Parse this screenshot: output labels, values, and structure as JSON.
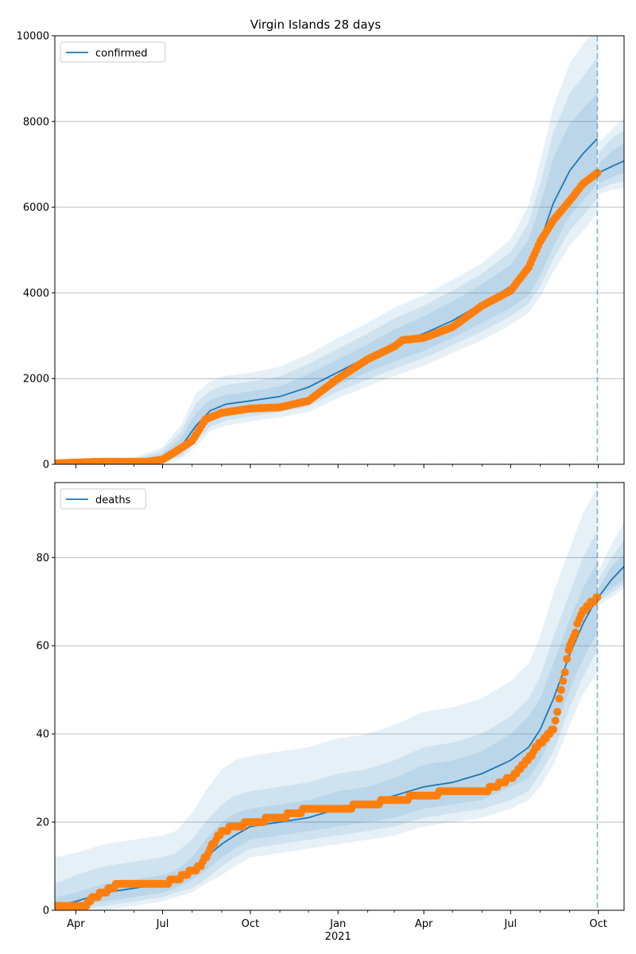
{
  "title": "Virgin Islands 28 days",
  "colors": {
    "model": "#1f77b4",
    "observed": "#ff7f0e",
    "band": "#1f77b4",
    "grid": "#b0b0b0",
    "vline": "#1f77b4"
  },
  "x_ticks": [
    {
      "date": "2020-04-01",
      "label": "Apr"
    },
    {
      "date": "2020-07-01",
      "label": "Jul"
    },
    {
      "date": "2020-10-01",
      "label": "Oct"
    },
    {
      "date": "2021-01-01",
      "label": "Jan",
      "sublabel": "2021"
    },
    {
      "date": "2021-04-01",
      "label": "Apr"
    },
    {
      "date": "2021-07-01",
      "label": "Jul"
    },
    {
      "date": "2021-10-01",
      "label": "Oct"
    }
  ],
  "chart_data": [
    {
      "type": "line",
      "name": "confirmed",
      "legend": "confirmed",
      "legend_position": "top-left",
      "grid": "y",
      "xlim": [
        "2020-03-10",
        "2021-10-28"
      ],
      "ylim": [
        0,
        10000
      ],
      "y_ticks": [
        0,
        2000,
        4000,
        6000,
        8000,
        10000
      ],
      "forecast_start": "2021-09-30",
      "model": {
        "x": [
          "2020-03-10",
          "2020-04-15",
          "2020-06-01",
          "2020-06-30",
          "2020-07-20",
          "2020-08-05",
          "2020-08-20",
          "2020-09-05",
          "2020-10-01",
          "2020-11-01",
          "2020-12-01",
          "2021-01-01",
          "2021-02-01",
          "2021-03-01",
          "2021-04-01",
          "2021-05-01",
          "2021-06-01",
          "2021-07-01",
          "2021-07-20",
          "2021-08-01",
          "2021-08-15",
          "2021-09-01",
          "2021-09-15",
          "2021-09-30",
          "2021-10-01",
          "2021-10-15",
          "2021-10-28"
        ],
        "y": [
          10,
          30,
          60,
          130,
          400,
          900,
          1250,
          1400,
          1480,
          1580,
          1800,
          2150,
          2500,
          2800,
          3050,
          3350,
          3750,
          4150,
          4600,
          5200,
          6100,
          6850,
          7250,
          7600,
          6800,
          6950,
          7080
        ],
        "bands": [
          {
            "lo": [
              0,
              15,
              40,
              80,
              250,
              650,
              1000,
              1150,
              1250,
              1350,
              1500,
              1850,
              2150,
              2400,
              2650,
              2950,
              3300,
              3650,
              3950,
              4400,
              5100,
              5800,
              6150,
              6550,
              6550,
              6700,
              6800
            ],
            "hi": [
              20,
              50,
              90,
              220,
              600,
              1200,
              1500,
              1620,
              1700,
              1820,
              2100,
              2450,
              2800,
              3150,
              3450,
              3800,
              4200,
              4650,
              5250,
              6050,
              7150,
              7950,
              8300,
              8650,
              7000,
              7300,
              7500
            ]
          },
          {
            "lo": [
              0,
              5,
              25,
              50,
              180,
              520,
              880,
              1020,
              1120,
              1220,
              1350,
              1700,
              1980,
              2230,
              2480,
              2780,
              3100,
              3450,
              3750,
              4150,
              4800,
              5450,
              5800,
              6200,
              6400,
              6550,
              6600
            ],
            "hi": [
              40,
              70,
              120,
              300,
              750,
              1420,
              1720,
              1850,
              1930,
              2050,
              2340,
              2700,
              3050,
              3400,
              3700,
              4050,
              4450,
              4950,
              5650,
              6550,
              7750,
              8650,
              9050,
              9500,
              7250,
              7600,
              7800
            ]
          },
          {
            "lo": [
              0,
              0,
              10,
              30,
              120,
              420,
              780,
              900,
              1000,
              1100,
              1220,
              1550,
              1820,
              2060,
              2300,
              2600,
              2900,
              3250,
              3550,
              3900,
              4500,
              5100,
              5450,
              5850,
              6300,
              6400,
              6450
            ],
            "hi": [
              60,
              100,
              160,
              380,
              900,
              1650,
              1940,
              2060,
              2140,
              2270,
              2570,
              2950,
              3300,
              3650,
              3950,
              4300,
              4700,
              5250,
              6050,
              7050,
              8350,
              9350,
              9800,
              10200,
              7500,
              7800,
              8100
            ]
          }
        ]
      },
      "observed": {
        "x": [
          "2020-03-10",
          "2020-04-01",
          "2020-04-20",
          "2020-05-15",
          "2020-06-15",
          "2020-07-01",
          "2020-07-15",
          "2020-08-01",
          "2020-08-15",
          "2020-09-01",
          "2020-10-01",
          "2020-11-01",
          "2020-12-01",
          "2021-01-01",
          "2021-02-01",
          "2021-03-01",
          "2021-03-10",
          "2021-04-01",
          "2021-05-01",
          "2021-06-01",
          "2021-07-01",
          "2021-07-20",
          "2021-08-01",
          "2021-08-15",
          "2021-09-01",
          "2021-09-15",
          "2021-09-30"
        ],
        "y": [
          20,
          40,
          55,
          60,
          60,
          110,
          300,
          550,
          1050,
          1200,
          1300,
          1330,
          1480,
          2000,
          2450,
          2750,
          2900,
          2950,
          3200,
          3700,
          4050,
          4600,
          5200,
          5700,
          6150,
          6550,
          6800
        ]
      }
    },
    {
      "type": "line",
      "name": "deaths",
      "legend": "deaths",
      "legend_position": "top-left",
      "grid": "y",
      "xlim": [
        "2020-03-10",
        "2021-10-28"
      ],
      "ylim": [
        0,
        97
      ],
      "y_ticks": [
        0,
        20,
        40,
        60,
        80
      ],
      "forecast_start": "2021-09-30",
      "model": {
        "x": [
          "2020-03-10",
          "2020-04-01",
          "2020-05-01",
          "2020-06-01",
          "2020-07-01",
          "2020-07-15",
          "2020-08-01",
          "2020-08-15",
          "2020-09-01",
          "2020-09-15",
          "2020-10-01",
          "2020-11-01",
          "2020-12-01",
          "2021-01-01",
          "2021-02-01",
          "2021-03-01",
          "2021-04-01",
          "2021-05-01",
          "2021-06-01",
          "2021-07-01",
          "2021-07-20",
          "2021-08-01",
          "2021-08-15",
          "2021-09-01",
          "2021-09-15",
          "2021-09-30",
          "2021-10-01",
          "2021-10-15",
          "2021-10-28"
        ],
        "y": [
          1,
          2,
          4,
          5,
          6,
          7,
          9,
          12,
          15,
          17,
          19,
          20,
          21,
          23,
          24,
          26,
          28,
          29,
          31,
          34,
          37,
          41,
          48,
          58,
          65,
          71,
          71,
          75,
          78
        ],
        "bands": [
          {
            "lo": [
              0,
              1,
              2,
              3,
              4,
              5,
              7,
              9,
              12,
              14,
              16,
              17,
              18,
              19,
              20,
              21,
              23,
              24,
              25,
              28,
              30,
              34,
              40,
              50,
              57,
              63,
              71,
              73,
              75
            ],
            "hi": [
              3,
              4,
              6,
              7,
              8,
              9,
              12,
              16,
              20,
              22,
              23,
              24,
              25,
              27,
              28,
              30,
              33,
              34,
              36,
              40,
              44,
              48,
              56,
              66,
              73,
              79,
              73,
              78,
              81
            ]
          },
          {
            "lo": [
              0,
              0,
              1,
              2,
              3,
              4,
              5,
              7,
              10,
              12,
              14,
              15,
              16,
              17,
              18,
              19,
              21,
              22,
              23,
              25,
              27,
              31,
              36,
              46,
              53,
              59,
              70,
              72,
              74
            ],
            "hi": [
              6,
              8,
              10,
              11,
              12,
              13,
              16,
              20,
              24,
              26,
              27,
              28,
              29,
              31,
              32,
              34,
              37,
              38,
              40,
              44,
              48,
              53,
              62,
              72,
              80,
              86,
              75,
              80,
              84
            ]
          },
          {
            "lo": [
              0,
              0,
              0,
              1,
              2,
              3,
              4,
              6,
              8,
              10,
              12,
              13,
              14,
              15,
              16,
              17,
              19,
              20,
              21,
              23,
              25,
              28,
              33,
              42,
              49,
              54,
              69,
              71,
              73
            ],
            "hi": [
              12,
              13,
              15,
              16,
              17,
              18,
              22,
              27,
              32,
              34,
              35,
              36,
              37,
              39,
              40,
              42,
              45,
              46,
              48,
              52,
              56,
              62,
              72,
              82,
              90,
              96,
              77,
              83,
              88
            ]
          }
        ]
      },
      "observed": {
        "x": [
          "2020-03-10",
          "2020-04-10",
          "2020-04-20",
          "2020-05-01",
          "2020-05-15",
          "2020-06-01",
          "2020-07-01",
          "2020-07-15",
          "2020-08-01",
          "2020-08-10",
          "2020-08-20",
          "2020-09-01",
          "2020-10-01",
          "2020-11-01",
          "2020-12-01",
          "2021-01-01",
          "2021-02-01",
          "2021-03-01",
          "2021-04-01",
          "2021-05-01",
          "2021-06-01",
          "2021-06-15",
          "2021-07-01",
          "2021-07-15",
          "2021-08-01",
          "2021-08-15",
          "2021-09-01",
          "2021-09-15",
          "2021-09-30"
        ],
        "y": [
          1,
          1,
          3,
          4,
          6,
          6,
          6,
          7,
          9,
          10,
          14,
          18,
          20,
          21,
          23,
          23,
          24,
          25,
          26,
          27,
          27,
          28,
          30,
          33,
          38,
          41,
          60,
          68,
          71
        ]
      }
    }
  ]
}
